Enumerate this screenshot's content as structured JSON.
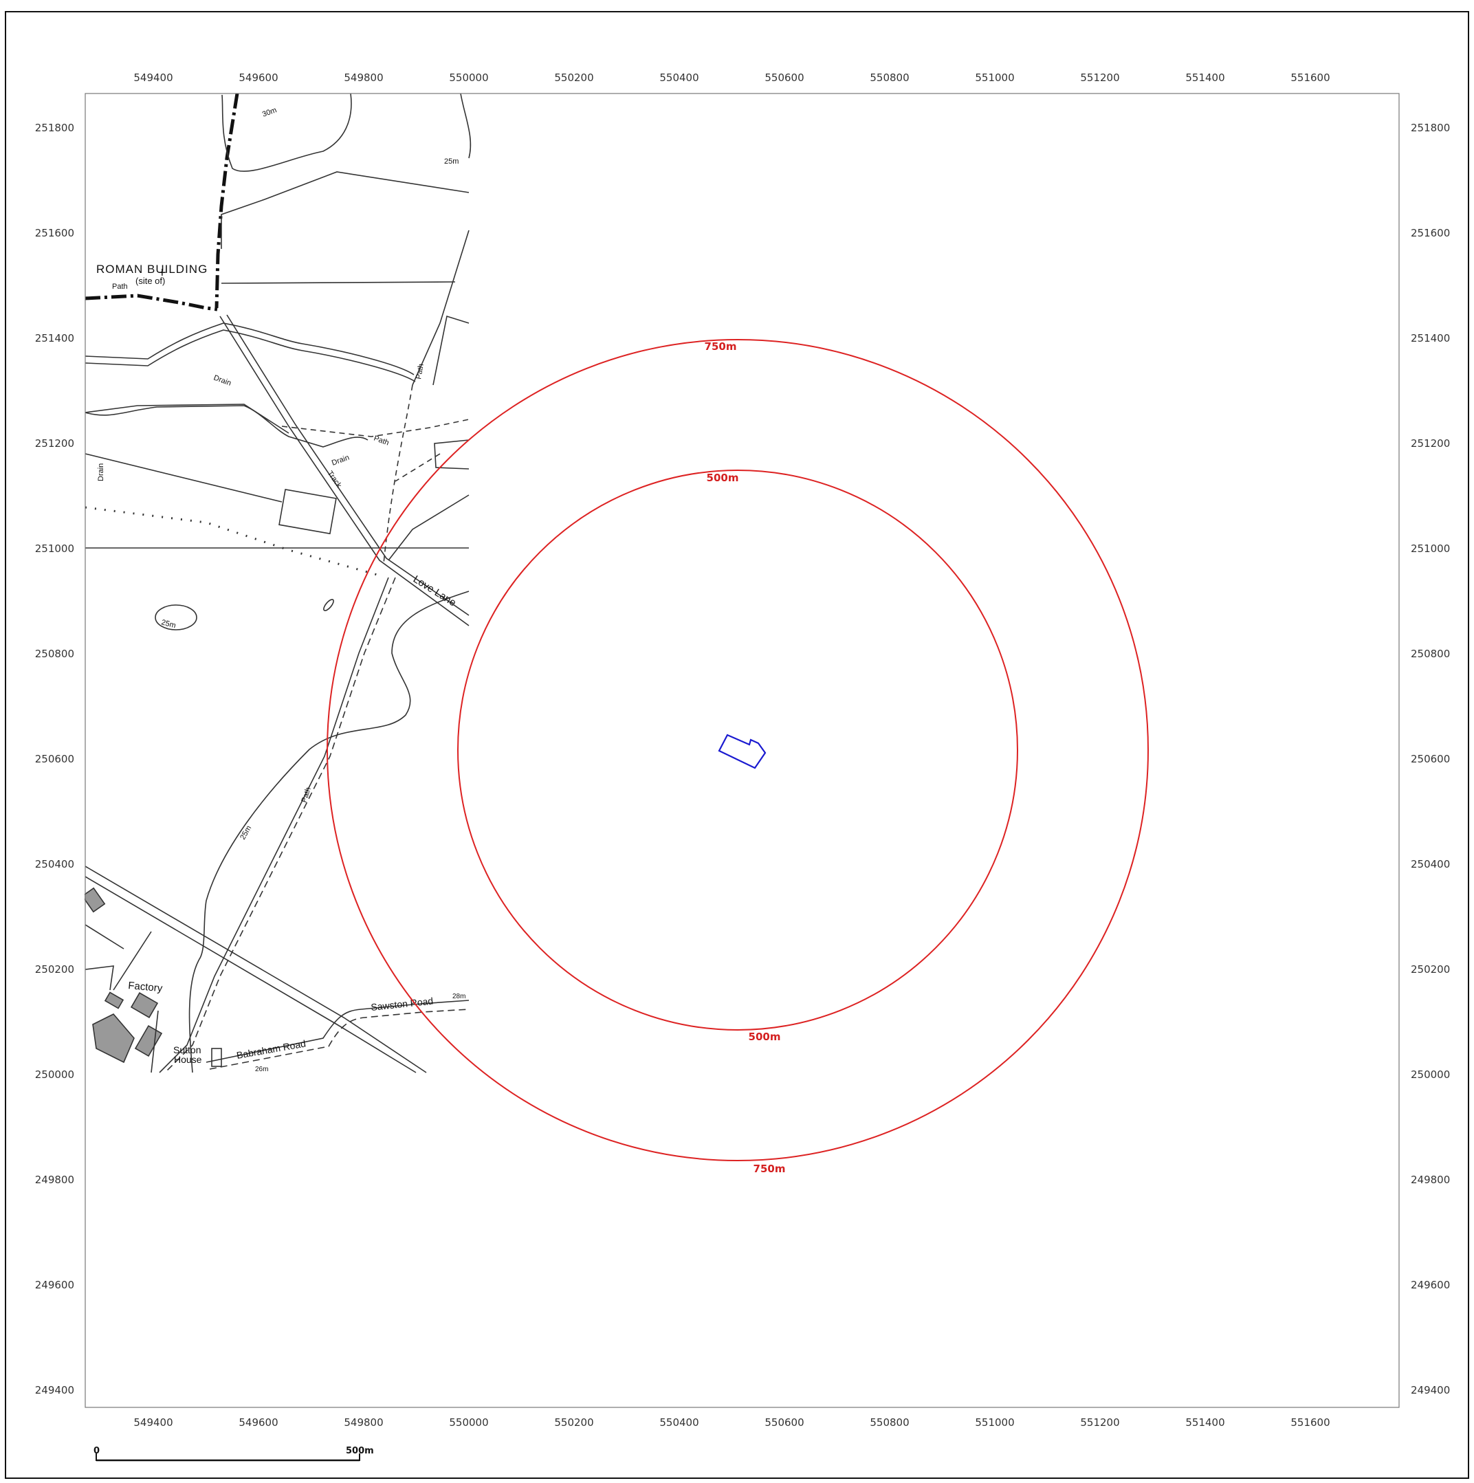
{
  "map": {
    "x_axis": {
      "ticks": [
        549400,
        549600,
        549800,
        550000,
        550200,
        550400,
        550600,
        550800,
        551000,
        551200,
        551400,
        551600
      ]
    },
    "y_axis": {
      "ticks": [
        251800,
        251600,
        251400,
        251200,
        251000,
        250800,
        250600,
        250400,
        250200,
        250000,
        249800,
        249600,
        249400
      ]
    },
    "site": {
      "name": "site-boundary",
      "color": "#1a1ad0"
    },
    "buffers": [
      {
        "radius_label": "750m",
        "color": "#dd2222"
      },
      {
        "radius_label": "500m",
        "color": "#dd2222"
      }
    ],
    "basemap_labels": {
      "roman_building": "ROMAN BUILDING",
      "site_of": "(site of)",
      "path_1": "Path",
      "path_2": "Path",
      "path_3": "Path",
      "path_4": "Path",
      "drain_1": "Drain",
      "drain_2": "Drain",
      "drain_3": "Drain",
      "track": "Track",
      "love_lane": "Love Lane",
      "contour_30": "30m",
      "contour_25a": "25m",
      "contour_25b": "25m",
      "contour_25c": "25m",
      "factory": "Factory",
      "sutton": "Sutton",
      "house": "House",
      "babraham_road": "Babraham Road",
      "sawston_road": "Sawston Road",
      "height_28": "28m",
      "height_26": "26m"
    },
    "scale_bar": {
      "start_label": "0",
      "end_label": "500m"
    }
  }
}
